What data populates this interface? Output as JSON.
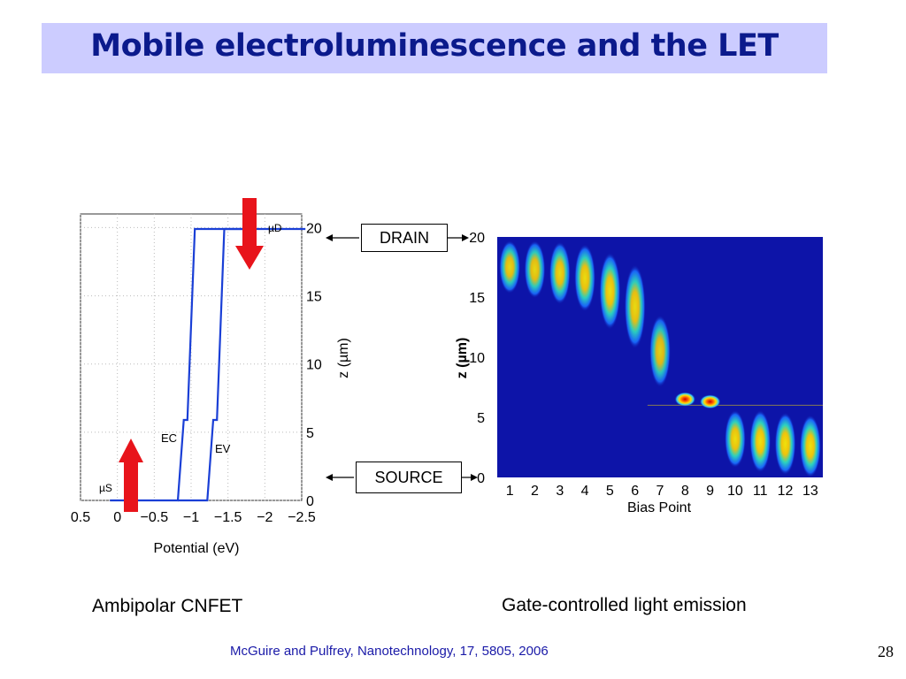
{
  "slide": {
    "title": "Mobile electroluminescence and the LET",
    "drain_label": "DRAIN",
    "source_label": "SOURCE",
    "left_caption": "Ambipolar CNFET",
    "right_caption": "Gate-controlled light emission",
    "citation": "McGuire and Pulfrey, Nanotechnology, 17, 5805, 2006",
    "page_number": "28"
  },
  "colors": {
    "title_bg": "#ccccff",
    "title_text": "#0b1a8c",
    "band_line": "#1a3fd6",
    "arrow_red": "#e8141b",
    "heatmap_bg": "#0d14a8",
    "citation": "#1a1aa8"
  },
  "chart_data": [
    {
      "type": "line",
      "xlabel": "Potential (eV)",
      "ylabel": "z (µm)",
      "xlim": [
        0.5,
        -2.5
      ],
      "ylim": [
        0,
        21
      ],
      "x_ticks": [
        "0.5",
        "0",
        "−0.5",
        "−1",
        "−1.5",
        "−2",
        "−2.5"
      ],
      "y_ticks": [
        "0",
        "5",
        "10",
        "15",
        "20"
      ],
      "y_axis_side": "right",
      "grid": true,
      "annotations": {
        "mu_d": "µD",
        "mu_s": "µS",
        "ec": "EC",
        "ev": "EV"
      },
      "series": [
        {
          "name": "EC",
          "points": [
            [
              0.1,
              0
            ],
            [
              -0.82,
              0
            ],
            [
              -0.9,
              5.9
            ],
            [
              -0.95,
              5.9
            ],
            [
              -1.05,
              19.9
            ],
            [
              -1.7,
              19.9
            ]
          ]
        },
        {
          "name": "EV",
          "points": [
            [
              -0.82,
              0
            ],
            [
              -1.22,
              0
            ],
            [
              -1.3,
              5.9
            ],
            [
              -1.35,
              5.9
            ],
            [
              -1.45,
              19.9
            ],
            [
              -2.55,
              19.9
            ]
          ]
        }
      ],
      "arrows": [
        {
          "label": "drain",
          "direction": "down"
        },
        {
          "label": "source",
          "direction": "up"
        }
      ]
    },
    {
      "type": "heatmap",
      "xlabel": "Bias Point",
      "ylabel": "z (µm)",
      "categories": [
        "1",
        "2",
        "3",
        "4",
        "5",
        "6",
        "7",
        "8",
        "9",
        "10",
        "11",
        "12",
        "13"
      ],
      "y_ticks": [
        "0",
        "5",
        "10",
        "15",
        "20"
      ],
      "ylim": [
        0,
        20
      ],
      "emission_centers_z": [
        17.5,
        17.3,
        17.0,
        16.6,
        15.5,
        14.2,
        10.5,
        6.5,
        6.3,
        3.2,
        3.0,
        2.8,
        2.6
      ],
      "emission_spread_z": [
        2.2,
        2.4,
        2.6,
        2.8,
        3.2,
        3.5,
        3.0,
        0.6,
        0.5,
        2.4,
        2.6,
        2.6,
        2.6
      ],
      "peak_intensity": [
        0.75,
        0.75,
        0.78,
        0.8,
        0.82,
        0.78,
        0.7,
        1.0,
        1.0,
        0.82,
        0.85,
        0.85,
        0.85
      ]
    }
  ]
}
